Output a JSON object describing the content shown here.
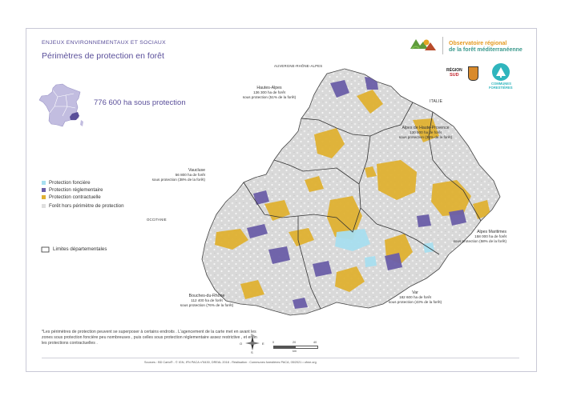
{
  "header": {
    "kicker": "ENJEUX ENVIRONNEMENTAUX ET SOCIAUX",
    "title": "Périmètres de protection en forêt",
    "total": "776 600 ha sous protection"
  },
  "brand": {
    "observatoire_line1": "Observatoire régional",
    "observatoire_line2": "de la forêt méditerranéenne",
    "region_logo_line1": "RÉGION",
    "region_logo_line2": "SUD",
    "communes_logo_line1": "COMMUNES",
    "communes_logo_line2": "FORESTIÈRES"
  },
  "legend": {
    "items": [
      {
        "label": "Protection foncière",
        "color": "#a8dff0"
      },
      {
        "label": "Protection réglementaire",
        "color": "#6b5ea8"
      },
      {
        "label": "Protection contractuelle",
        "color": "#e0b132"
      },
      {
        "label": "Forêt hors périmètre de protection",
        "color": "#dedede"
      }
    ],
    "limits_label": "Limites départementales"
  },
  "neighbors": {
    "north": "AUVERGNE-RHÔNE-ALPES",
    "east": "ITALIE",
    "west": "OCCITANIE"
  },
  "departments": [
    {
      "name": "Hautes-Alpes",
      "area": "136 300 ha de forêt",
      "share": "sous protection (51% de la forêt)"
    },
    {
      "name": "Alpes de Haute-Provence",
      "area": "130 500 ha de forêt",
      "share": "sous protection (30% de la forêt)"
    },
    {
      "name": "Vaucluse",
      "area": "56 800 ha de forêt",
      "share": "sous protection (38% de la forêt)"
    },
    {
      "name": "Alpes Maritimes",
      "area": "158 000 ha de forêt",
      "share": "sous protection (58% de la forêt)"
    },
    {
      "name": "Bouches-du-Rhône",
      "area": "112 400 ha de forêt",
      "share": "sous protection (76% de la forêt)"
    },
    {
      "name": "Var",
      "area": "182 600 ha de forêt",
      "share": "sous protection (43% de la forêt)"
    }
  ],
  "compass": {
    "n": "N",
    "s": "S",
    "e": "E",
    "o": "O"
  },
  "scale": {
    "ticks": [
      "0",
      "20",
      "40"
    ],
    "unit": "km"
  },
  "note": "*Les périmètres de protection peuvent se superposer à certains endroits . L'agencement de la carte met en avant les zones sous protection foncière peu nombreuses , puis celles sous protection réglementaire assez  restrictive , et enfin les protections contractuelles .",
  "sources": "Sources : BD Carto® - © IGN, IFN PACA n°8430, DREAL 2018 - Réalisation : Communes forestières PACA, 05/2021 • ofme.org",
  "colors": {
    "accent": "#5a4f9a",
    "fonciere": "#a8dff0",
    "reglementaire": "#6b5ea8",
    "contractuelle": "#e0b132",
    "foret": "#dedede"
  }
}
